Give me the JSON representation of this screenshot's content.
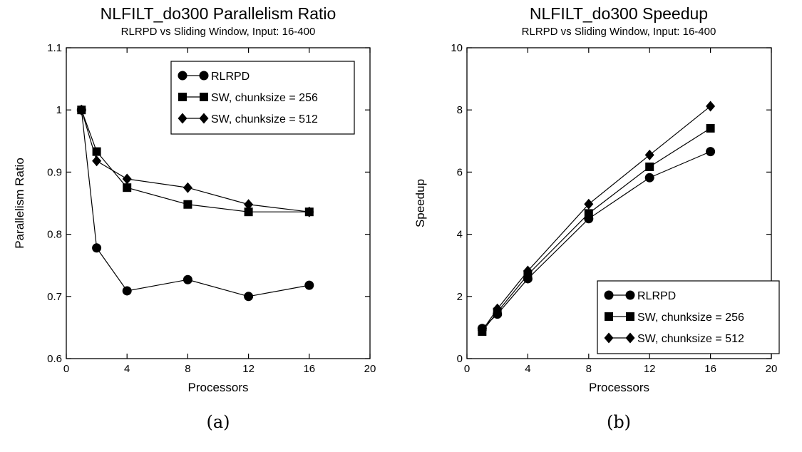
{
  "chart_data": [
    {
      "type": "line",
      "title": "NLFILT_do300 Parallelism Ratio",
      "subtitle": "RLRPD vs Sliding Window, Input: 16-400",
      "xlabel": "Processors",
      "ylabel": "Parallelism Ratio",
      "xlim": [
        0,
        20
      ],
      "ylim": [
        0.6,
        1.1
      ],
      "xticks": [
        0,
        4,
        8,
        12,
        16,
        20
      ],
      "yticks": [
        0.6,
        0.7,
        0.8,
        0.9,
        1,
        1.1
      ],
      "xtick_labels": [
        "0",
        "4",
        "8",
        "12",
        "16",
        "20"
      ],
      "ytick_labels": [
        "0.6",
        "0.7",
        "0.8",
        "0.9",
        "1",
        "1.1"
      ],
      "legend_position": "top-right",
      "x": [
        1,
        2,
        4,
        8,
        12,
        16
      ],
      "series": [
        {
          "name": "RLRPD",
          "marker": "circle",
          "values": [
            1.0,
            0.778,
            0.709,
            0.727,
            0.7,
            0.718
          ]
        },
        {
          "name": "SW, chunksize = 256",
          "marker": "square",
          "values": [
            1.0,
            0.933,
            0.875,
            0.848,
            0.836,
            0.836
          ]
        },
        {
          "name": "SW, chunksize = 512",
          "marker": "diamond",
          "values": [
            1.0,
            0.918,
            0.889,
            0.875,
            0.848,
            0.836
          ]
        }
      ],
      "caption": "(a)"
    },
    {
      "type": "line",
      "title": "NLFILT_do300 Speedup",
      "subtitle": "RLRPD vs Sliding Window, Input: 16-400",
      "xlabel": "Processors",
      "ylabel": "Speedup",
      "xlim": [
        0,
        20
      ],
      "ylim": [
        0,
        10
      ],
      "xticks": [
        0,
        4,
        8,
        12,
        16,
        20
      ],
      "yticks": [
        0,
        2,
        4,
        6,
        8,
        10
      ],
      "xtick_labels": [
        "0",
        "4",
        "8",
        "12",
        "16",
        "20"
      ],
      "ytick_labels": [
        "0",
        "2",
        "4",
        "6",
        "8",
        "10"
      ],
      "legend_position": "bottom-right",
      "x": [
        1,
        2,
        4,
        8,
        12,
        16
      ],
      "series": [
        {
          "name": "RLRPD",
          "marker": "circle",
          "values": [
            0.97,
            1.43,
            2.57,
            4.5,
            5.82,
            6.66
          ]
        },
        {
          "name": "SW, chunksize = 256",
          "marker": "square",
          "values": [
            0.87,
            1.5,
            2.7,
            4.67,
            6.17,
            7.41
          ]
        },
        {
          "name": "SW, chunksize = 512",
          "marker": "diamond",
          "values": [
            0.9,
            1.6,
            2.82,
            4.97,
            6.55,
            8.12
          ]
        }
      ],
      "caption": "(b)"
    }
  ]
}
